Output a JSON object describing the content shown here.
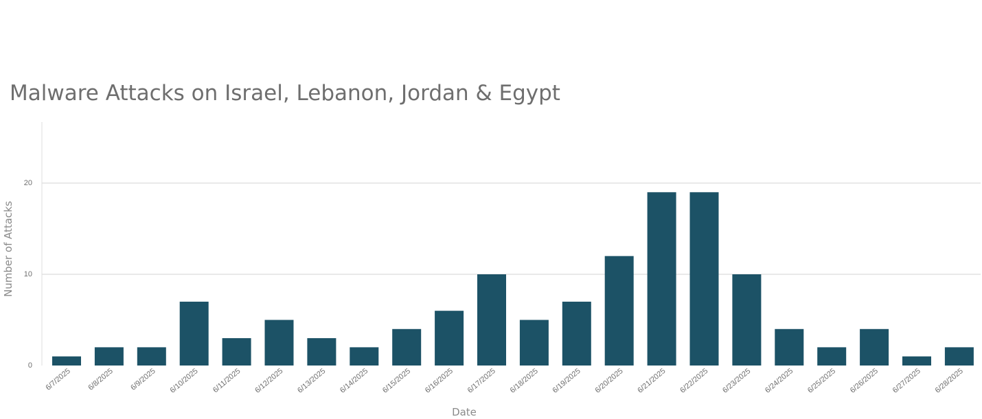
{
  "chart_data": {
    "type": "bar",
    "title": "Malware Attacks on Israel, Lebanon, Jordan & Egypt",
    "xlabel": "Date",
    "ylabel": "Number of Attacks",
    "ylim": [
      0,
      27
    ],
    "yticks": [
      0,
      10,
      20
    ],
    "grid": true,
    "color": "#1c5266",
    "categories": [
      "6/7/2025",
      "6/8/2025",
      "6/9/2025",
      "6/10/2025",
      "6/11/2025",
      "6/12/2025",
      "6/13/2025",
      "6/14/2025",
      "6/15/2025",
      "6/16/2025",
      "6/17/2025",
      "6/18/2025",
      "6/19/2025",
      "6/20/2025",
      "6/21/2025",
      "6/22/2025",
      "6/23/2025",
      "6/24/2025",
      "6/25/2025",
      "6/26/2025",
      "6/27/2025",
      "6/28/2025"
    ],
    "values": [
      1,
      2,
      2,
      7,
      3,
      5,
      3,
      2,
      4,
      6,
      10,
      5,
      7,
      12,
      19,
      19,
      10,
      4,
      2,
      4,
      1,
      2
    ]
  }
}
